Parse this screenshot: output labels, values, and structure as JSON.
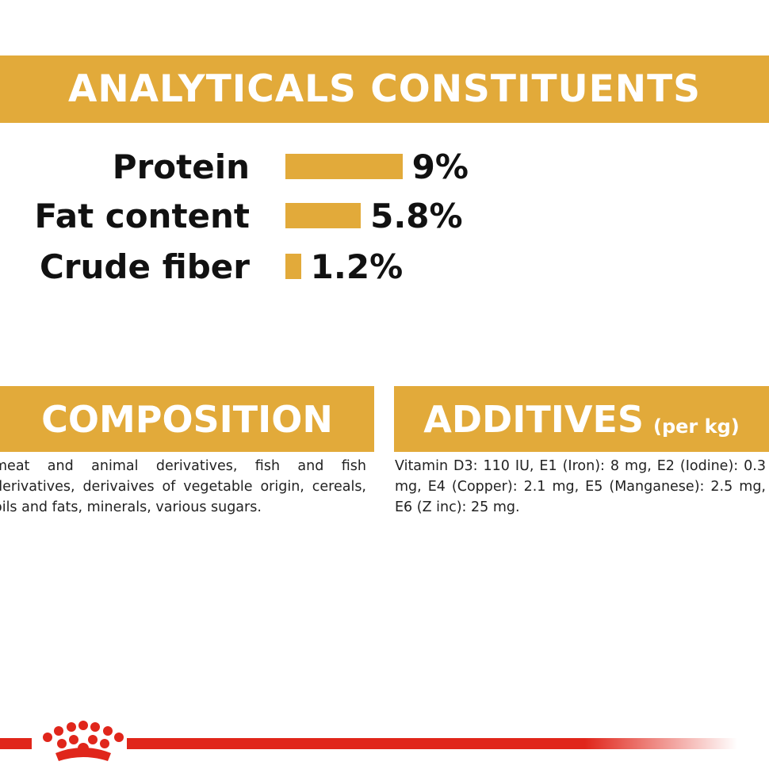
{
  "header": {
    "title": "ANALYTICALS CONSTITUENTS"
  },
  "chart_data": {
    "type": "bar",
    "orientation": "horizontal",
    "categories": [
      "Protein",
      "Fat content",
      "Crude fiber"
    ],
    "values": [
      9,
      5.8,
      1.2
    ],
    "value_labels": [
      "9%",
      "5.8%",
      "1.2%"
    ],
    "color": "#e2aa3a"
  },
  "composition": {
    "title": "COMPOSITION",
    "text": "meat and animal derivatives, fish and fish derivatives, derivaives of vegetable origin, cereals, oils and fats, minerals, various sugars."
  },
  "additives": {
    "title": "ADDITIVES",
    "unit": "(per kg)",
    "text": "Vitamin D3: 110 IU, E1 (Iron): 8 mg, E2 (Iodine): 0.3 mg, E4 (Copper): 2.1 mg, E5 (Manganese): 2.5 mg, E6 (Z inc): 25 mg."
  }
}
